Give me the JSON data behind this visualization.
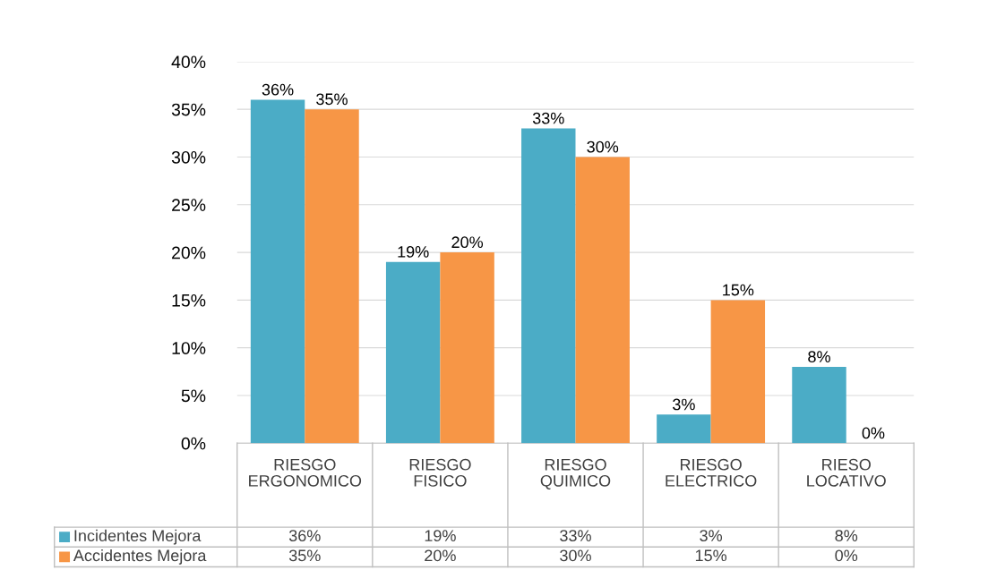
{
  "chart_data": {
    "type": "bar",
    "categories": [
      "RIESGO ERGONOMICO",
      "RIESGO FISICO",
      "RIESGO QUIMICO",
      "RIESGO ELECTRICO",
      "RIESO LOCATIVO"
    ],
    "series": [
      {
        "name": "Incidentes Mejora",
        "color": "#4bacc6",
        "values": [
          36,
          19,
          33,
          3,
          8
        ],
        "value_labels": [
          "36%",
          "19%",
          "33%",
          "3%",
          "8%"
        ]
      },
      {
        "name": "Accidentes Mejora",
        "color": "#f79646",
        "values": [
          35,
          20,
          30,
          15,
          0
        ],
        "value_labels": [
          "35%",
          "20%",
          "30%",
          "15%",
          "0%"
        ]
      }
    ],
    "ylim": [
      0,
      40
    ],
    "yticks": [
      {
        "value": 0,
        "label": "0%"
      },
      {
        "value": 5,
        "label": "5%"
      },
      {
        "value": 10,
        "label": "10%"
      },
      {
        "value": 15,
        "label": "15%"
      },
      {
        "value": 20,
        "label": "20%"
      },
      {
        "value": 25,
        "label": "25%"
      },
      {
        "value": 30,
        "label": "30%"
      },
      {
        "value": 35,
        "label": "35%"
      },
      {
        "value": 40,
        "label": "40%"
      }
    ],
    "grid": "y",
    "legend": "bottom"
  }
}
